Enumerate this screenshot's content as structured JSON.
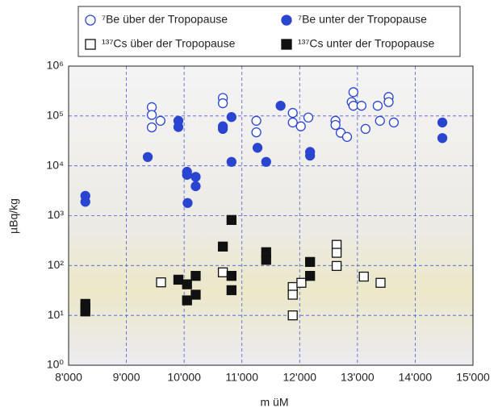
{
  "chart_data": {
    "type": "scatter",
    "xlabel": "m üM",
    "ylabel": "µBq/kg",
    "xlim": [
      8000,
      15000
    ],
    "ylim": [
      1,
      1000000
    ],
    "log_y": true,
    "grid": true,
    "xticks": [
      {
        "value": 8000,
        "label": "8'000"
      },
      {
        "value": 9000,
        "label": "9'000"
      },
      {
        "value": 10000,
        "label": "10'000"
      },
      {
        "value": 11000,
        "label": "11'000"
      },
      {
        "value": 12000,
        "label": "12'000"
      },
      {
        "value": 13000,
        "label": "13'000"
      },
      {
        "value": 14000,
        "label": "14'000"
      },
      {
        "value": 15000,
        "label": "15'000"
      }
    ],
    "yticks": [
      {
        "value": 1,
        "label": "10⁰"
      },
      {
        "value": 10,
        "label": "10¹"
      },
      {
        "value": 100,
        "label": "10²"
      },
      {
        "value": 1000,
        "label": "10³"
      },
      {
        "value": 10000,
        "label": "10⁴"
      },
      {
        "value": 100000,
        "label": "10⁵"
      },
      {
        "value": 1000000,
        "label": "10⁶"
      }
    ],
    "series": [
      {
        "name": "⁷Be über der Tropopause",
        "color": "#2a45d0",
        "marker": "circle",
        "filled": false,
        "x": [
          9440,
          9440,
          9440,
          9590,
          10670,
          10670,
          11250,
          11250,
          11880,
          11880,
          12020,
          12150,
          12620,
          12620,
          12710,
          12900,
          12930,
          12930,
          13070,
          13140,
          13350,
          13390,
          13540,
          13540,
          13630,
          12820
        ],
        "values": [
          150000,
          105000,
          59000,
          80000,
          230000,
          180000,
          80000,
          47000,
          115000,
          74000,
          62000,
          93000,
          80000,
          66000,
          46000,
          190000,
          300000,
          160000,
          160000,
          55000,
          160000,
          80000,
          240000,
          190000,
          74000,
          38000
        ]
      },
      {
        "name": "⁷Be unter der Tropopause",
        "color": "#2a45d0",
        "marker": "circle",
        "filled": true,
        "x": [
          9370,
          8290,
          8290,
          9900,
          9900,
          10050,
          10050,
          10060,
          10200,
          10200,
          10670,
          10670,
          10820,
          10820,
          11270,
          11420,
          11670,
          12180,
          12180,
          14470,
          14470
        ],
        "values": [
          15000,
          2500,
          1900,
          80000,
          60000,
          7600,
          6600,
          1800,
          6000,
          3900,
          62000,
          55000,
          95000,
          12000,
          23000,
          12000,
          160000,
          19000,
          16000,
          74000,
          36000
        ]
      },
      {
        "name": "¹³⁷Cs über der Tropopause",
        "color": "#111111",
        "marker": "square",
        "filled": false,
        "x": [
          9600,
          10670,
          11880,
          11880,
          11880,
          12030,
          12640,
          12640,
          12640,
          13110,
          13400
        ],
        "values": [
          46,
          73,
          37,
          26,
          10,
          45,
          260,
          180,
          98,
          60,
          45
        ]
      },
      {
        "name": "¹³⁷Cs unter der Tropopause",
        "color": "#111111",
        "marker": "square",
        "filled": true,
        "x": [
          8290,
          8290,
          8290,
          9900,
          10050,
          10050,
          10200,
          10200,
          10670,
          10820,
          10820,
          10820,
          11420,
          11420,
          12180,
          12180
        ],
        "values": [
          17,
          14,
          12,
          52,
          42,
          20,
          62,
          26,
          240,
          820,
          62,
          32,
          185,
          130,
          118,
          62
        ]
      }
    ]
  }
}
